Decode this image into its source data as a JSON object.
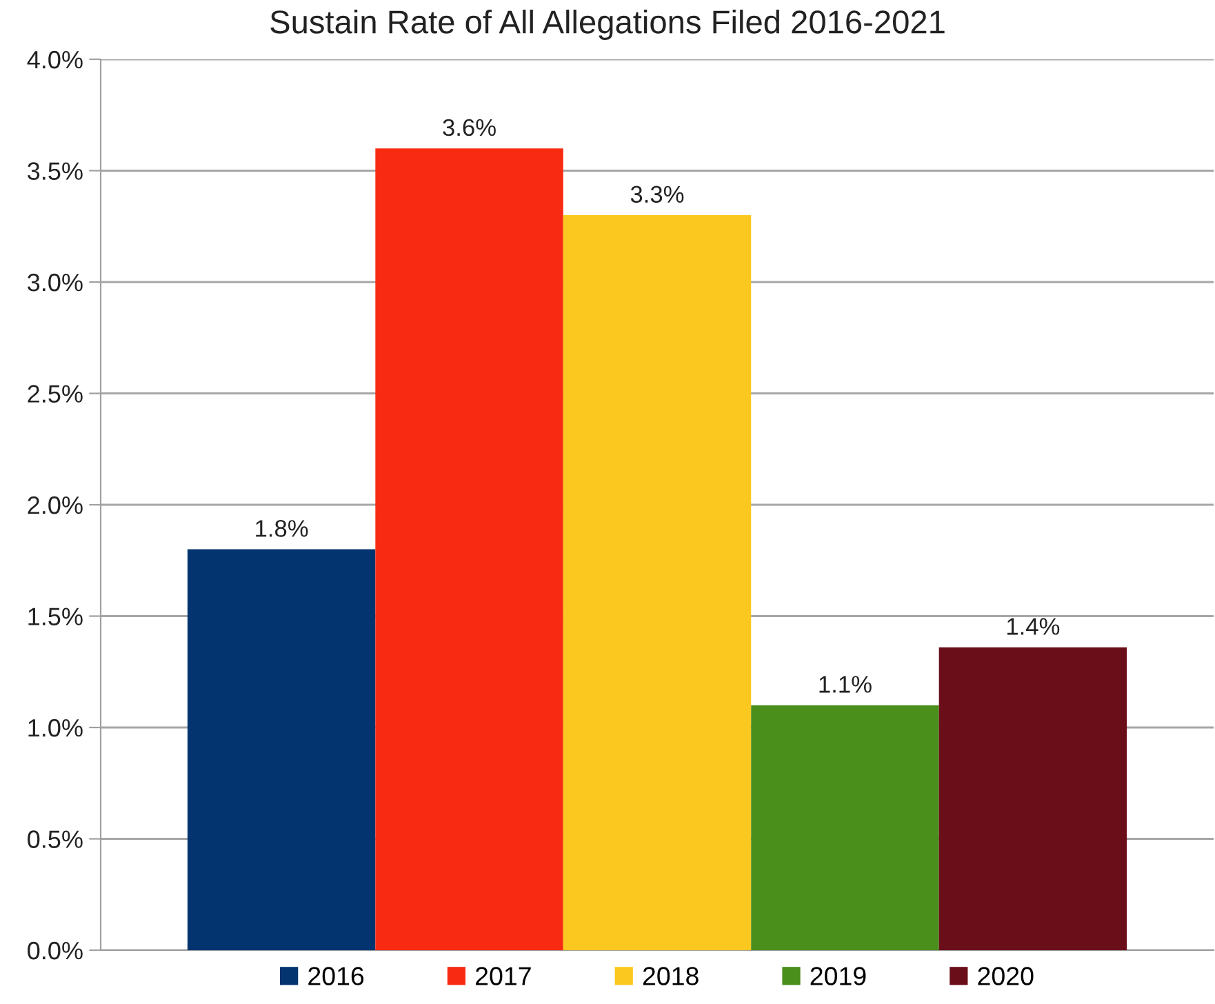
{
  "chart_data": {
    "type": "bar",
    "title": "Sustain Rate of All Allegations Filed 2016-2021",
    "categories": [
      null
    ],
    "series": [
      {
        "name": "2016",
        "color": "#04346f",
        "values": [
          1.8
        ],
        "value_labels": [
          "1.8%"
        ]
      },
      {
        "name": "2017",
        "color": "#f82b12",
        "values": [
          3.6
        ],
        "value_labels": [
          "3.6%"
        ]
      },
      {
        "name": "2018",
        "color": "#fbc81f",
        "values": [
          3.3
        ],
        "value_labels": [
          "3.3%"
        ]
      },
      {
        "name": "2019",
        "color": "#4a8e1b",
        "values": [
          1.1
        ],
        "value_labels": [
          "1.1%"
        ]
      },
      {
        "name": "2020",
        "color": "#6a0e1a",
        "values": [
          1.36
        ],
        "value_labels": [
          "1.4%"
        ]
      }
    ],
    "ylim": [
      0,
      4
    ],
    "yticks": [
      {
        "value": 0,
        "label": "0.0%"
      },
      {
        "value": 0.5,
        "label": "0.5%"
      },
      {
        "value": 1,
        "label": "1.0%"
      },
      {
        "value": 1.5,
        "label": "1.5%"
      },
      {
        "value": 2,
        "label": "2.0%"
      },
      {
        "value": 2.5,
        "label": "2.5%"
      },
      {
        "value": 3,
        "label": "3.0%"
      },
      {
        "value": 3.5,
        "label": "3.5%"
      },
      {
        "value": 4,
        "label": "4.0%"
      }
    ],
    "grid": "y",
    "legend": "bottom"
  }
}
